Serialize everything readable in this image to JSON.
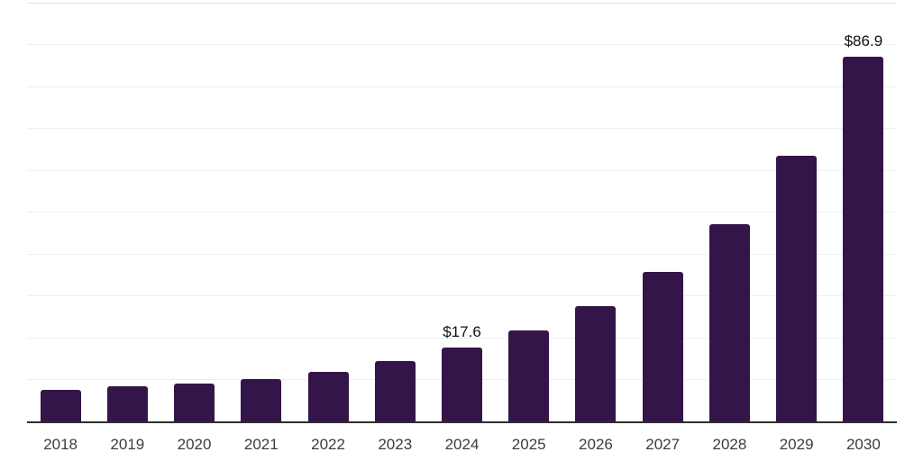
{
  "chart_data": {
    "type": "bar",
    "title": "",
    "xlabel": "",
    "ylabel": "",
    "categories": [
      "2018",
      "2019",
      "2020",
      "2021",
      "2022",
      "2023",
      "2024",
      "2025",
      "2026",
      "2027",
      "2028",
      "2029",
      "2030"
    ],
    "values": [
      7.6,
      8.3,
      9.1,
      10.0,
      11.9,
      14.3,
      17.6,
      21.6,
      27.6,
      35.7,
      47.0,
      63.4,
      86.9
    ],
    "data_labels": [
      "",
      "",
      "",
      "",
      "",
      "",
      "$17.6",
      "",
      "",
      "",
      "",
      "",
      "$86.9"
    ],
    "ylim": [
      0,
      100
    ],
    "gridline_step": 10,
    "grid": "horizontal",
    "legend": "none",
    "y_tick_labels_visible": false,
    "colors": {
      "bar": "#341549",
      "gridline": "#efefef",
      "gridline_top": "#e5e5e5",
      "axis_line": "#2e2e2e",
      "data_label": "#111111",
      "tick_label": "#3c3c3c",
      "background": "#ffffff"
    }
  }
}
